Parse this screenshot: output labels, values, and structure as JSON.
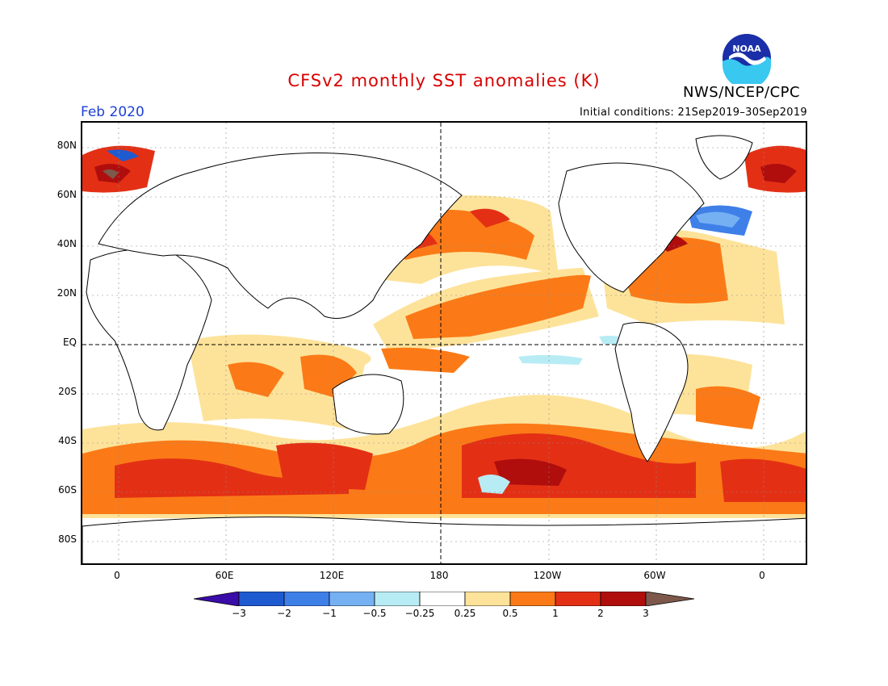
{
  "header": {
    "title": "CFSv2 monthly SST anomalies (K)",
    "agency": "NWS/NCEP/CPC",
    "logo_text": "NOAA",
    "valid_month": "Feb 2020",
    "initial_conditions": "Initial conditions: 21Sep2019–30Sep2019"
  },
  "map": {
    "projection": "equirectangular",
    "center_longitude": "180",
    "lat_labels": [
      "80N",
      "60N",
      "40N",
      "20N",
      "EQ",
      "20S",
      "40S",
      "60S",
      "80S"
    ],
    "lon_labels": [
      "0",
      "60E",
      "120E",
      "180",
      "120W",
      "60W",
      "0"
    ],
    "reference_lines": [
      "Equator (dashed)",
      "180 meridian (dashed)"
    ]
  },
  "colorbar": {
    "labels": [
      "−3",
      "−2",
      "−1",
      "−0.5",
      "−0.25",
      "0.25",
      "0.5",
      "1",
      "2",
      "3"
    ],
    "colors": {
      "below_-3": "#3a0ca8",
      "-3_-2": "#1f5bd0",
      "-2_-1": "#3f7fe8",
      "-1_-0.5": "#75b1f2",
      "-0.5_-0.25": "#b8ecf5",
      "-0.25_0.25": "#ffffff",
      "0.25_0.5": "#fde39a",
      "0.5_1": "#fb7a17",
      "1_2": "#e33015",
      "2_3": "#b00d0d",
      "above_3": "#7d584b"
    }
  }
}
